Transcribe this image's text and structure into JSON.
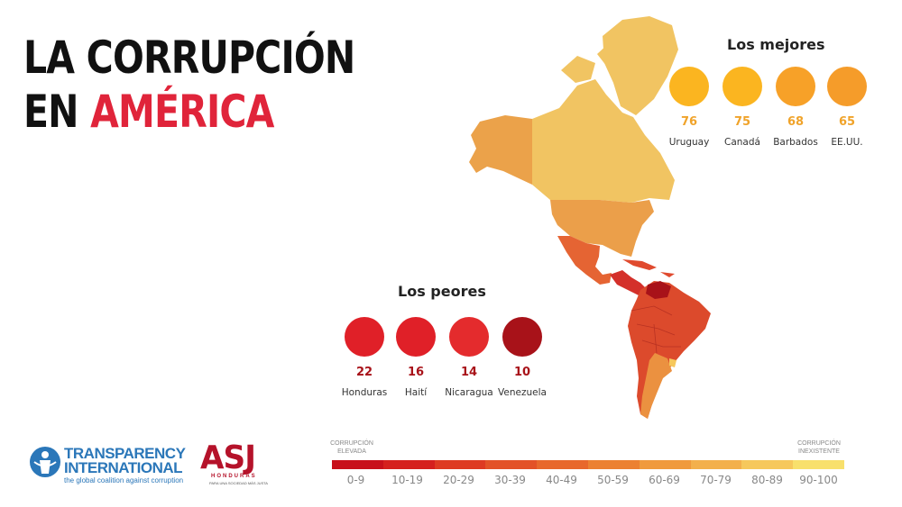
{
  "title": {
    "line1": "LA CORRUPCIÓN",
    "line2_prefix": "EN ",
    "line2_accent": "AMÉRICA",
    "accent_color": "#e0243a"
  },
  "best": {
    "title": "Los mejores",
    "countries": [
      {
        "name": "Uruguay",
        "score": "76",
        "color": "#fbb520"
      },
      {
        "name": "Canadá",
        "score": "75",
        "color": "#fbb520"
      },
      {
        "name": "Barbados",
        "score": "68",
        "color": "#f7a128"
      },
      {
        "name": "EE.UU.",
        "score": "65",
        "color": "#f59c2a"
      }
    ],
    "score_color": "#f0a32a"
  },
  "worst": {
    "title": "Los peores",
    "countries": [
      {
        "name": "Honduras",
        "score": "22",
        "color": "#e02028"
      },
      {
        "name": "Haití",
        "score": "16",
        "color": "#e02028"
      },
      {
        "name": "Nicaragua",
        "score": "14",
        "color": "#e42b2d"
      },
      {
        "name": "Venezuela",
        "score": "10",
        "color": "#a81219"
      }
    ],
    "score_color": "#a81219"
  },
  "legend": {
    "high_label": "CORRUPCIÓN ELEVADA",
    "low_label": "CORRUPCIÓN INEXISTENTE",
    "ranges": [
      "0-9",
      "10-19",
      "20-29",
      "30-39",
      "40-49",
      "50-59",
      "60-69",
      "70-79",
      "80-89",
      "90-100"
    ],
    "colors": [
      "#c8101b",
      "#d5201e",
      "#de3a22",
      "#e35227",
      "#e8682c",
      "#ec8132",
      "#f09a3c",
      "#f3b04c",
      "#f6c85c",
      "#f8e06c"
    ]
  },
  "logos": {
    "ti_line1": "TRANSPARENCY",
    "ti_line2": "INTERNATIONAL",
    "ti_tagline": "the global coalition against corruption",
    "asj_name": "ASJ",
    "asj_country": "HONDURAS",
    "asj_tagline": "PARA UNA SOCIEDAD MÁS JUSTA"
  }
}
